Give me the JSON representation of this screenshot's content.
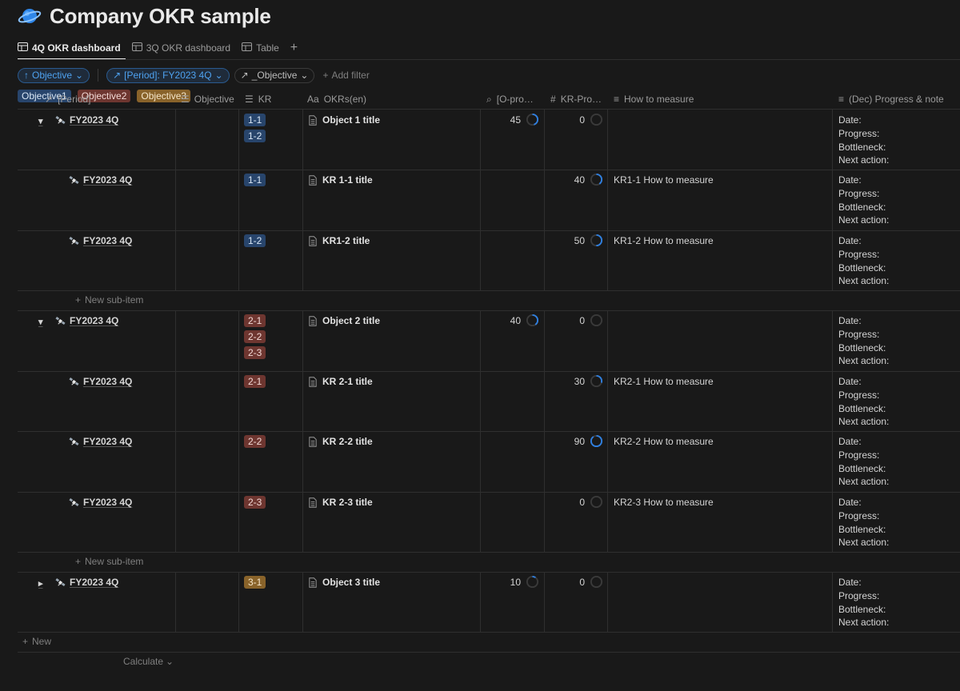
{
  "page": {
    "title": "Company OKR sample",
    "icon": "planet-icon"
  },
  "tabs": [
    {
      "label": "4Q OKR dashboard",
      "active": true
    },
    {
      "label": "3Q OKR dashboard",
      "active": false
    },
    {
      "label": "Table",
      "active": false
    }
  ],
  "filters": {
    "sort_label": "Objective",
    "period_filter_label": "[Period]: FY2023 4Q",
    "objective_filter_label": "_Objective",
    "add_filter_label": "Add filter"
  },
  "columns": {
    "period": "[Period]",
    "objective": "Objective",
    "kr": "KR",
    "okrs": "OKRs(en)",
    "o_progress": "[O-pro…",
    "kr_progress": "KR-Pro…",
    "how_to_measure": "How to measure",
    "progress_note": "(Dec) Progress & note"
  },
  "note_lines": [
    "Date:",
    "Progress:",
    "Bottleneck:",
    "Next action:"
  ],
  "rows": [
    {
      "period": "FY2023 4Q",
      "objective": "Objective1",
      "objective_color": "blue",
      "kr_tags": [
        "1-1",
        "1-2"
      ],
      "okr": "Object 1 title",
      "o_progress": "45",
      "o_fraction": 0.45,
      "kr_progress": "0",
      "kr_fraction": 0,
      "measure": ""
    },
    {
      "period": "FY2023 4Q",
      "objective": "",
      "kr_tags": [
        "1-1"
      ],
      "okr": "KR 1-1 title",
      "o_progress": "",
      "kr_progress": "40",
      "kr_fraction": 0.4,
      "measure": "KR1-1 How to measure"
    },
    {
      "period": "FY2023 4Q",
      "objective": "",
      "kr_tags": [
        "1-2"
      ],
      "okr": "KR1-2 title",
      "o_progress": "",
      "kr_progress": "50",
      "kr_fraction": 0.5,
      "measure": "KR1-2 How to measure"
    },
    {
      "period": "FY2023 4Q",
      "objective": "Objective2",
      "objective_color": "red",
      "kr_tags": [
        "2-1",
        "2-2",
        "2-3"
      ],
      "okr": "Object 2 title",
      "o_progress": "40",
      "o_fraction": 0.4,
      "kr_progress": "0",
      "kr_fraction": 0,
      "measure": ""
    },
    {
      "period": "FY2023 4Q",
      "objective": "",
      "kr_tags": [
        "2-1"
      ],
      "okr": "KR 2-1 title",
      "o_progress": "",
      "kr_progress": "30",
      "kr_fraction": 0.3,
      "measure": "KR2-1 How to measure"
    },
    {
      "period": "FY2023 4Q",
      "objective": "",
      "kr_tags": [
        "2-2"
      ],
      "okr": "KR 2-2 title",
      "o_progress": "",
      "kr_progress": "90",
      "kr_fraction": 0.9,
      "measure": "KR2-2 How to measure"
    },
    {
      "period": "FY2023 4Q",
      "objective": "",
      "kr_tags": [
        "2-3"
      ],
      "okr": "KR 2-3 title",
      "o_progress": "",
      "kr_progress": "0",
      "kr_fraction": 0,
      "measure": "KR2-3 How to measure"
    },
    {
      "period": "FY2023 4Q",
      "objective": "Objective3",
      "objective_color": "gold",
      "kr_tags": [
        "3-1"
      ],
      "okr": "Object 3 title",
      "o_progress": "10",
      "o_fraction": 0.1,
      "kr_progress": "0",
      "kr_fraction": 0,
      "measure": ""
    }
  ],
  "new_sub_item_label": "New sub-item",
  "new_label": "New",
  "calculate_label": "Calculate",
  "colors": {
    "blue": "#28456c",
    "red": "#6e3630",
    "gold": "#89632a",
    "progress": "#2f7fe0"
  }
}
